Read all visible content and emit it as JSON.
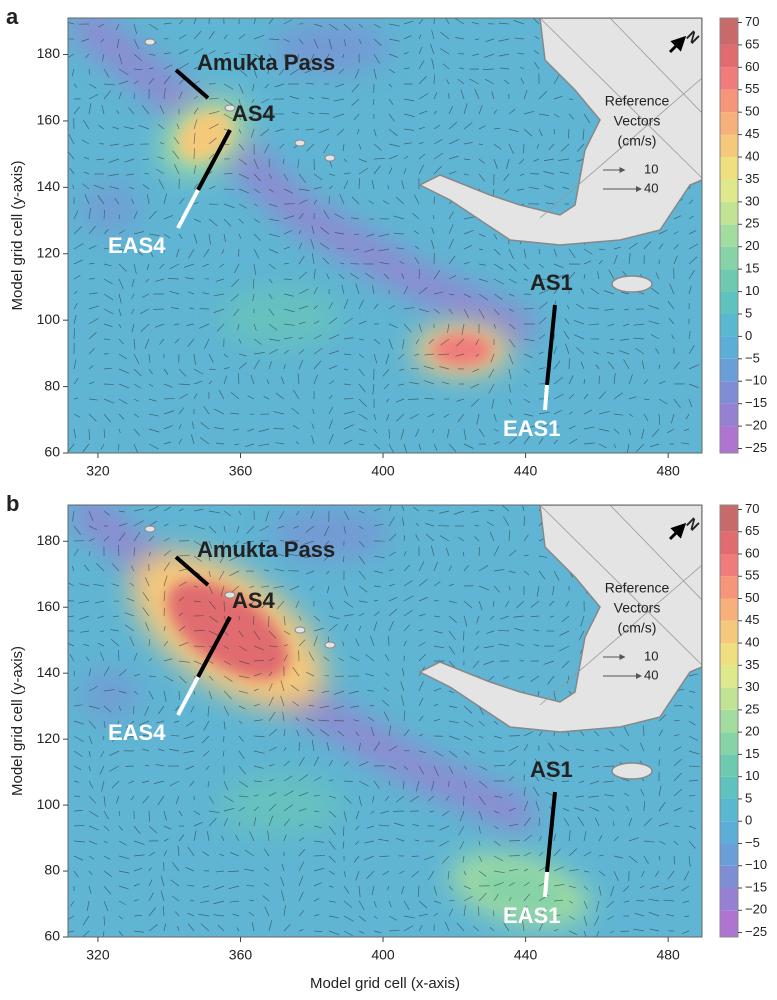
{
  "chart_data": [
    {
      "type": "vector-field",
      "panel_label": "a",
      "ylabel": "Model grid cell (y-axis)",
      "xlim": [
        311.6,
        489.5
      ],
      "ylim": [
        60,
        191
      ],
      "xticks": [
        320,
        360,
        400,
        440,
        480
      ],
      "yticks": [
        60,
        80,
        100,
        120,
        140,
        160,
        180
      ],
      "colorbar": {
        "clim": [
          -26,
          71
        ],
        "ticks": [
          {
            "value": -25,
            "label": "−25"
          },
          {
            "value": -20,
            "label": "−20"
          },
          {
            "value": -15,
            "label": "−15"
          },
          {
            "value": -10,
            "label": "−10"
          },
          {
            "value": -5,
            "label": "−5"
          },
          0,
          5,
          10,
          15,
          20,
          25,
          30,
          35,
          40,
          45,
          50,
          55,
          60,
          65,
          70
        ],
        "colors": [
          "#ae74d0",
          "#9680d2",
          "#7f8ed4",
          "#6a9ed6",
          "#5aaed8",
          "#58b8cf",
          "#5ec2bf",
          "#6dcab0",
          "#86d3a8",
          "#a3dc9f",
          "#c3e394",
          "#dfe88a",
          "#f0df7e",
          "#f5c97a",
          "#f7b07a",
          "#f5957a",
          "#f07b7b",
          "#e06c6f",
          "#c96a6a"
        ]
      },
      "annotations": {
        "pass": "Amukta Pass",
        "as4": "AS4",
        "eas4": "EAS4",
        "as1": "AS1",
        "eas1": "EAS1",
        "north": "N"
      },
      "reference": {
        "title": [
          "Reference",
          "Vectors",
          "(cm/s)"
        ],
        "vectors": [
          10,
          40
        ]
      }
    },
    {
      "type": "vector-field",
      "panel_label": "b",
      "ylabel": "Model grid cell (y-axis)",
      "xlabel": "Model grid cell (x-axis)",
      "xlim": [
        311.6,
        489.5
      ],
      "ylim": [
        60,
        191
      ],
      "xticks": [
        320,
        360,
        400,
        440,
        480
      ],
      "yticks": [
        60,
        80,
        100,
        120,
        140,
        160,
        180
      ],
      "colorbar": {
        "clim": [
          -26,
          71
        ],
        "ticks": [
          {
            "value": -25,
            "label": "−25"
          },
          {
            "value": -20,
            "label": "−20"
          },
          {
            "value": -15,
            "label": "−15"
          },
          {
            "value": -10,
            "label": "−10"
          },
          {
            "value": -5,
            "label": "−5"
          },
          0,
          5,
          10,
          15,
          20,
          25,
          30,
          35,
          40,
          45,
          50,
          55,
          60,
          65,
          70
        ],
        "colors": [
          "#ae74d0",
          "#9680d2",
          "#7f8ed4",
          "#6a9ed6",
          "#5aaed8",
          "#58b8cf",
          "#5ec2bf",
          "#6dcab0",
          "#86d3a8",
          "#a3dc9f",
          "#c3e394",
          "#dfe88a",
          "#f0df7e",
          "#f5c97a",
          "#f7b07a",
          "#f5957a",
          "#f07b7b",
          "#e06c6f",
          "#c96a6a"
        ]
      },
      "annotations": {
        "pass": "Amukta Pass",
        "as4": "AS4",
        "eas4": "EAS4",
        "as1": "AS1",
        "eas1": "EAS1",
        "north": "N"
      },
      "reference": {
        "title": [
          "Reference",
          "Vectors",
          "(cm/s)"
        ],
        "vectors": [
          10,
          40
        ]
      }
    }
  ]
}
